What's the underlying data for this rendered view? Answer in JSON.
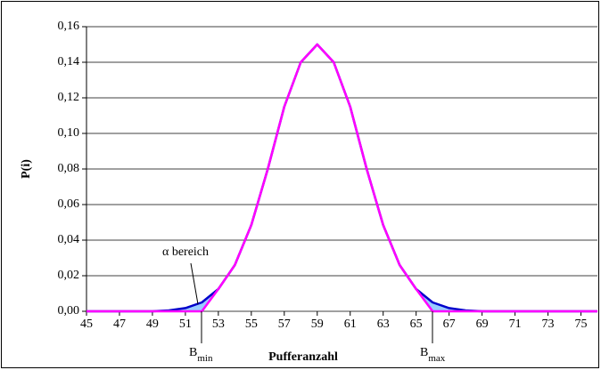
{
  "chart_data": {
    "type": "line",
    "y_label": "P(i)",
    "x_label": "Pufferanzahl",
    "x": [
      45,
      46,
      47,
      48,
      49,
      50,
      51,
      52,
      53,
      54,
      55,
      56,
      57,
      58,
      59,
      60,
      61,
      62,
      63,
      64,
      65,
      66,
      67,
      68,
      69,
      70,
      71,
      72,
      73,
      74,
      75,
      76
    ],
    "series": [
      {
        "color": "#0000cc",
        "values": [
          0,
          0,
          0,
          0,
          0,
          0.0005,
          0.0018,
          0.005,
          0.0125,
          0.026,
          0.0485,
          0.08,
          0.115,
          0.14,
          0.15,
          0.14,
          0.115,
          0.08,
          0.0485,
          0.026,
          0.0125,
          0.005,
          0.0018,
          0.0005,
          0,
          0,
          0,
          0,
          0,
          0,
          0,
          0
        ]
      },
      {
        "color": "#ff00ff",
        "values": [
          0,
          0,
          0,
          0,
          0,
          0,
          0,
          0,
          0.0125,
          0.026,
          0.0485,
          0.08,
          0.115,
          0.14,
          0.15,
          0.14,
          0.115,
          0.08,
          0.0485,
          0.026,
          0.0125,
          0,
          0,
          0,
          0,
          0,
          0,
          0,
          0,
          0,
          0,
          0
        ]
      }
    ],
    "area_color": "#99ccff",
    "xlim": [
      45,
      76
    ],
    "xticks": [
      45,
      47,
      49,
      51,
      53,
      55,
      57,
      59,
      61,
      63,
      65,
      67,
      69,
      71,
      73,
      75
    ],
    "ylim": [
      0,
      0.16
    ],
    "yticks": [
      {
        "value": 0,
        "label": "0,00"
      },
      {
        "value": 0.02,
        "label": "0,02"
      },
      {
        "value": 0.04,
        "label": "0,04"
      },
      {
        "value": 0.06,
        "label": "0,06"
      },
      {
        "value": 0.08,
        "label": "0,08"
      },
      {
        "value": 0.1,
        "label": "0,10"
      },
      {
        "value": 0.12,
        "label": "0,12"
      },
      {
        "value": 0.14,
        "label": "0,14"
      },
      {
        "value": 0.16,
        "label": "0,16"
      }
    ],
    "grid": true,
    "annotations": [
      {
        "text": "α bereich"
      },
      {
        "text": "B",
        "sub": "min"
      },
      {
        "text": "B",
        "sub": "max"
      }
    ]
  }
}
